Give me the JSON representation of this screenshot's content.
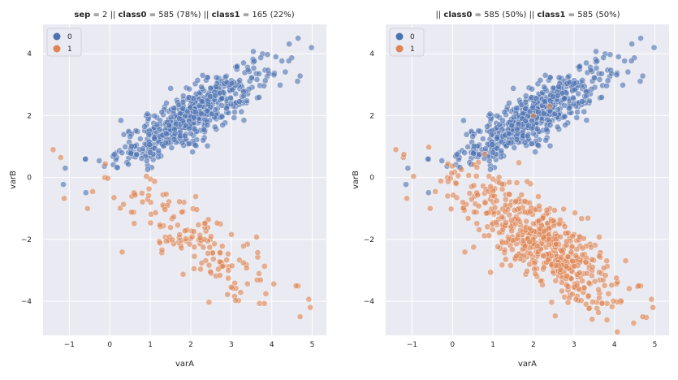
{
  "chart_data": [
    {
      "type": "scatter",
      "title_parts": [
        {
          "text": "sep",
          "bold": true
        },
        {
          "text": " = 2 || ",
          "bold": false
        },
        {
          "text": "class0",
          "bold": true
        },
        {
          "text": " = 585 (78%)  || ",
          "bold": false
        },
        {
          "text": "class1",
          "bold": true
        },
        {
          "text": " = 165 (22%)",
          "bold": false
        }
      ],
      "xlabel": "varA",
      "ylabel": "varB",
      "xlim": [
        -1.65,
        5.35
      ],
      "ylim": [
        -5.1,
        4.95
      ],
      "xticks": [
        -1,
        0,
        1,
        2,
        3,
        4,
        5
      ],
      "yticks": [
        -4,
        -2,
        0,
        2,
        4
      ],
      "legend": {
        "position": "top-left",
        "entries": [
          "0",
          "1"
        ]
      },
      "grid": true,
      "series": [
        {
          "name": "0",
          "color": "#4c72b0",
          "count": 585,
          "cluster": {
            "mx": 2.0,
            "my": 2.0,
            "sx": 0.9,
            "sy": 0.8,
            "rho": 0.85
          },
          "extra": [
            [
              4.65,
              4.5
            ],
            [
              4.98,
              4.2
            ],
            [
              4.1,
              3.9
            ],
            [
              -1.1,
              0.3
            ],
            [
              -0.6,
              0.6
            ],
            [
              0.3,
              0.8
            ]
          ]
        },
        {
          "name": "1",
          "color": "#dd8452",
          "count": 165,
          "cluster": {
            "mx": 2.1,
            "my": -2.0,
            "sx": 1.0,
            "sy": 1.1,
            "rho": -0.8
          },
          "extra": [
            [
              -1.4,
              0.9
            ],
            [
              -0.55,
              -1.0
            ],
            [
              4.7,
              -4.5
            ],
            [
              4.95,
              -4.2
            ],
            [
              4.6,
              -3.5
            ]
          ]
        }
      ]
    },
    {
      "type": "scatter",
      "title_parts": [
        {
          "text": "|| ",
          "bold": false
        },
        {
          "text": "class0",
          "bold": true
        },
        {
          "text": " = 585 (50%)  || ",
          "bold": false
        },
        {
          "text": "class1",
          "bold": true
        },
        {
          "text": " = 585 (50%)",
          "bold": false
        }
      ],
      "xlabel": "varA",
      "ylabel": "varB",
      "xlim": [
        -1.65,
        5.35
      ],
      "ylim": [
        -5.1,
        4.95
      ],
      "xticks": [
        -1,
        0,
        1,
        2,
        3,
        4,
        5
      ],
      "yticks": [
        -4,
        -2,
        0,
        2,
        4
      ],
      "legend": {
        "position": "top-left",
        "entries": [
          "0",
          "1"
        ]
      },
      "grid": true,
      "series": [
        {
          "name": "0",
          "color": "#4c72b0",
          "count": 585,
          "cluster": {
            "mx": 2.0,
            "my": 2.0,
            "sx": 0.9,
            "sy": 0.8,
            "rho": 0.85
          },
          "extra": [
            [
              4.65,
              4.5
            ],
            [
              4.98,
              4.2
            ],
            [
              4.1,
              3.9
            ],
            [
              -1.1,
              0.3
            ],
            [
              -0.6,
              0.6
            ],
            [
              0.3,
              0.8
            ]
          ]
        },
        {
          "name": "1",
          "color": "#dd8452",
          "count": 585,
          "cluster": {
            "mx": 2.1,
            "my": -2.0,
            "sx": 1.0,
            "sy": 1.1,
            "rho": -0.8
          },
          "extra": [
            [
              -1.4,
              0.9
            ],
            [
              -1.2,
              0.75
            ],
            [
              -0.55,
              -1.0
            ],
            [
              4.7,
              -4.5
            ],
            [
              4.95,
              -4.2
            ],
            [
              4.6,
              -3.5
            ],
            [
              2.0,
              2.0
            ],
            [
              2.4,
              2.3
            ]
          ]
        }
      ]
    }
  ]
}
